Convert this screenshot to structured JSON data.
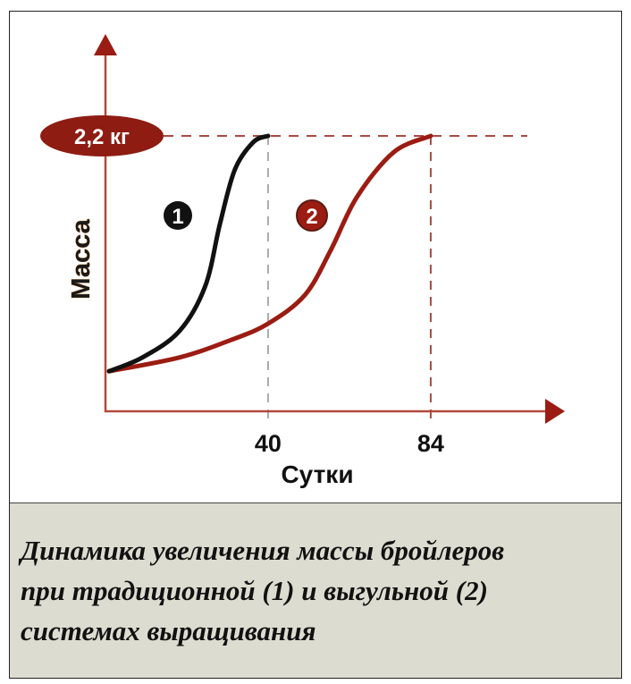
{
  "chart_data": {
    "type": "line",
    "xlabel": "Сутки",
    "ylabel": "Масса",
    "x_ticks": [
      "40",
      "84"
    ],
    "x_tick_values": [
      40,
      84
    ],
    "reference_level": {
      "value": 2.2,
      "label": "2,2 кг"
    },
    "grid": false,
    "series": [
      {
        "name": "1",
        "color": "#111111",
        "points": [
          [
            0,
            0.32
          ],
          [
            6,
            0.43
          ],
          [
            16,
            0.64
          ],
          [
            23,
            1.0
          ],
          [
            27,
            1.5
          ],
          [
            31,
            1.93
          ],
          [
            36,
            2.15
          ],
          [
            40,
            2.2
          ]
        ]
      },
      {
        "name": "2",
        "color": "#9b1c12",
        "points": [
          [
            0,
            0.32
          ],
          [
            16,
            0.43
          ],
          [
            30,
            0.57
          ],
          [
            40,
            0.7
          ],
          [
            50,
            0.93
          ],
          [
            57,
            1.29
          ],
          [
            64,
            1.71
          ],
          [
            74,
            2.07
          ],
          [
            84,
            2.2
          ]
        ]
      }
    ]
  },
  "colors": {
    "axis": "#b24a3c",
    "accent": "#9b1c12",
    "caption_bg": "#dddcd0"
  },
  "caption": {
    "lines": [
      "Динамика увеличения массы бройлеров",
      "при традиционной (1) и выгульной (2)",
      "системах выращивания"
    ]
  }
}
